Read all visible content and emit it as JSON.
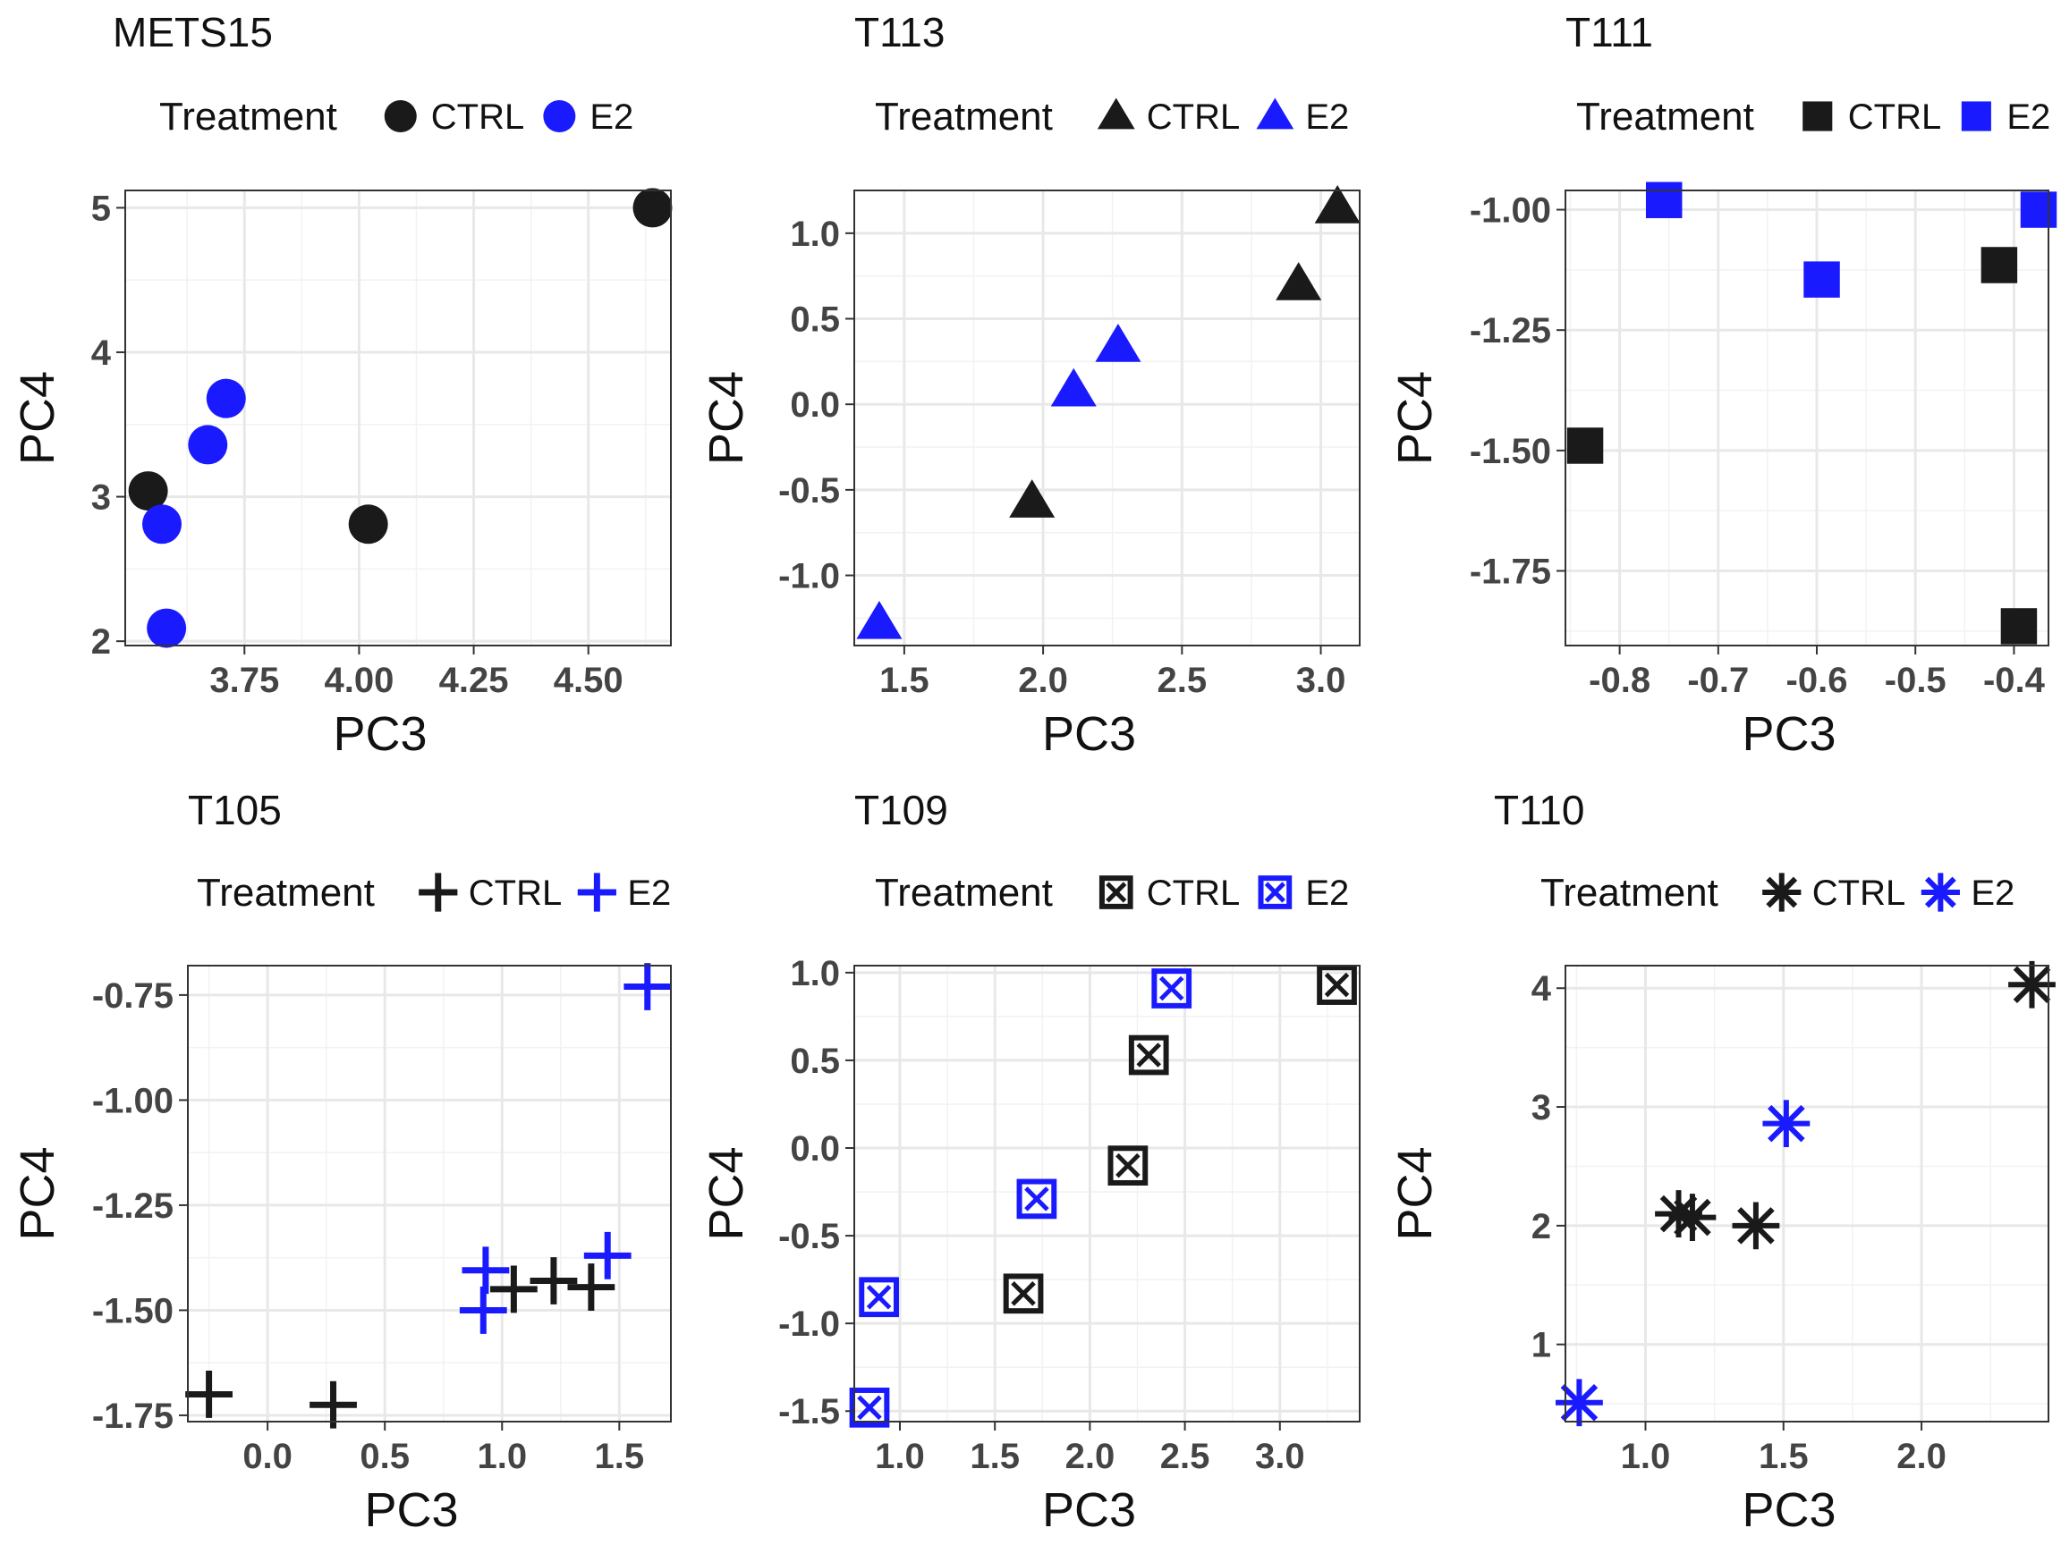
{
  "colors": {
    "CTRL": "#1a1a1a",
    "E2": "#1a1aff"
  },
  "chart_data": [
    {
      "type": "scatter",
      "title": "METS15",
      "xlabel": "PC3",
      "ylabel": "PC4",
      "legend": {
        "title": "Treatment",
        "entries": [
          "CTRL",
          "E2"
        ],
        "placement": "top",
        "shape": "circle"
      },
      "xlim": [
        3.49,
        4.68
      ],
      "ylim": [
        1.97,
        5.12
      ],
      "xticks": [
        3.75,
        4.0,
        4.25,
        4.5
      ],
      "xticklabels": [
        "3.75",
        "4.00",
        "4.25",
        "4.50"
      ],
      "yticks": [
        2,
        3,
        4,
        5
      ],
      "yticklabels": [
        "2",
        "3",
        "4",
        "5"
      ],
      "series": [
        {
          "name": "CTRL",
          "points": [
            [
              3.54,
              3.04
            ],
            [
              4.02,
              2.81
            ],
            [
              4.64,
              5.0
            ]
          ]
        },
        {
          "name": "E2",
          "points": [
            [
              3.57,
              2.81
            ],
            [
              3.58,
              2.09
            ],
            [
              3.67,
              3.36
            ],
            [
              3.71,
              3.68
            ]
          ]
        }
      ]
    },
    {
      "type": "scatter",
      "title": "T113",
      "xlabel": "PC3",
      "ylabel": "PC4",
      "legend": {
        "title": "Treatment",
        "entries": [
          "CTRL",
          "E2"
        ],
        "placement": "top",
        "shape": "triangle"
      },
      "xlim": [
        1.32,
        3.14
      ],
      "ylim": [
        -1.41,
        1.25
      ],
      "xticks": [
        1.5,
        2.0,
        2.5,
        3.0
      ],
      "xticklabels": [
        "1.5",
        "2.0",
        "2.5",
        "3.0"
      ],
      "yticks": [
        -1.0,
        -0.5,
        0.0,
        0.5,
        1.0
      ],
      "yticklabels": [
        "-1.0",
        "-0.5",
        "0.0",
        "0.5",
        "1.0"
      ],
      "series": [
        {
          "name": "CTRL",
          "points": [
            [
              1.96,
              -0.57
            ],
            [
              2.92,
              0.7
            ],
            [
              3.06,
              1.15
            ]
          ]
        },
        {
          "name": "E2",
          "points": [
            [
              1.41,
              -1.28
            ],
            [
              2.11,
              0.08
            ],
            [
              2.27,
              0.34
            ]
          ]
        }
      ]
    },
    {
      "type": "scatter",
      "title": "T111",
      "xlabel": "PC3",
      "ylabel": "PC4",
      "legend": {
        "title": "Treatment",
        "entries": [
          "CTRL",
          "E2"
        ],
        "placement": "top",
        "shape": "square"
      },
      "xlim": [
        -0.855,
        -0.365
      ],
      "ylim": [
        -1.905,
        -0.96
      ],
      "xticks": [
        -0.8,
        -0.7,
        -0.6,
        -0.5,
        -0.4
      ],
      "xticklabels": [
        "-0.8",
        "-0.7",
        "-0.6",
        "-0.5",
        "-0.4"
      ],
      "yticks": [
        -1.75,
        -1.5,
        -1.25,
        -1.0
      ],
      "yticklabels": [
        "-1.75",
        "-1.50",
        "-1.25",
        "-1.00"
      ],
      "series": [
        {
          "name": "CTRL",
          "points": [
            [
              -0.835,
              -1.49
            ],
            [
              -0.415,
              -1.115
            ],
            [
              -0.395,
              -1.865
            ]
          ]
        },
        {
          "name": "E2",
          "points": [
            [
              -0.755,
              -0.98
            ],
            [
              -0.595,
              -1.145
            ],
            [
              -0.375,
              -1.0
            ]
          ]
        }
      ]
    },
    {
      "type": "scatter",
      "title": "T105",
      "xlabel": "PC3",
      "ylabel": "PC4",
      "legend": {
        "title": "Treatment",
        "entries": [
          "CTRL",
          "E2"
        ],
        "placement": "top",
        "shape": "plus"
      },
      "xlim": [
        -0.34,
        1.72
      ],
      "ylim": [
        -1.765,
        -0.68
      ],
      "xticks": [
        0.0,
        0.5,
        1.0,
        1.5
      ],
      "xticklabels": [
        "0.0",
        "0.5",
        "1.0",
        "1.5"
      ],
      "yticks": [
        -1.75,
        -1.5,
        -1.25,
        -1.0,
        -0.75
      ],
      "yticklabels": [
        "-1.75",
        "-1.50",
        "-1.25",
        "-1.00",
        "-0.75"
      ],
      "series": [
        {
          "name": "CTRL",
          "points": [
            [
              -0.25,
              -1.7
            ],
            [
              0.28,
              -1.725
            ],
            [
              1.05,
              -1.45
            ],
            [
              1.22,
              -1.43
            ],
            [
              1.38,
              -1.445
            ]
          ]
        },
        {
          "name": "E2",
          "points": [
            [
              0.92,
              -1.5
            ],
            [
              0.93,
              -1.405
            ],
            [
              1.45,
              -1.37
            ],
            [
              1.62,
              -0.73
            ]
          ]
        }
      ]
    },
    {
      "type": "scatter",
      "title": "T109",
      "xlabel": "PC3",
      "ylabel": "PC4",
      "legend": {
        "title": "Treatment",
        "entries": [
          "CTRL",
          "E2"
        ],
        "placement": "top",
        "shape": "square-cross"
      },
      "xlim": [
        0.76,
        3.42
      ],
      "ylim": [
        -1.56,
        1.04
      ],
      "xticks": [
        1.0,
        1.5,
        2.0,
        2.5,
        3.0
      ],
      "xticklabels": [
        "1.0",
        "1.5",
        "2.0",
        "2.5",
        "3.0"
      ],
      "yticks": [
        -1.5,
        -1.0,
        -0.5,
        0.0,
        0.5,
        1.0
      ],
      "yticklabels": [
        "-1.5",
        "-1.0",
        "-0.5",
        "0.0",
        "0.5",
        "1.0"
      ],
      "series": [
        {
          "name": "CTRL",
          "points": [
            [
              1.65,
              -0.83
            ],
            [
              2.2,
              -0.1
            ],
            [
              2.31,
              0.53
            ],
            [
              3.3,
              0.93
            ]
          ]
        },
        {
          "name": "E2",
          "points": [
            [
              0.84,
              -1.48
            ],
            [
              0.89,
              -0.85
            ],
            [
              1.72,
              -0.29
            ],
            [
              2.43,
              0.91
            ]
          ]
        }
      ]
    },
    {
      "type": "scatter",
      "title": "T110",
      "xlabel": "PC3",
      "ylabel": "PC4",
      "legend": {
        "title": "Treatment",
        "entries": [
          "CTRL",
          "E2"
        ],
        "placement": "top",
        "shape": "asterisk"
      },
      "xlim": [
        0.71,
        2.46
      ],
      "ylim": [
        0.35,
        4.19
      ],
      "xticks": [
        1.0,
        1.5,
        2.0
      ],
      "xticklabels": [
        "1.0",
        "1.5",
        "2.0"
      ],
      "yticks": [
        1,
        2,
        3,
        4
      ],
      "yticklabels": [
        "1",
        "2",
        "3",
        "4"
      ],
      "series": [
        {
          "name": "CTRL",
          "points": [
            [
              1.12,
              2.1
            ],
            [
              1.17,
              2.07
            ],
            [
              1.4,
              2.0
            ],
            [
              2.4,
              4.03
            ]
          ]
        },
        {
          "name": "E2",
          "points": [
            [
              0.76,
              0.51
            ],
            [
              1.51,
              2.86
            ]
          ]
        }
      ]
    }
  ]
}
